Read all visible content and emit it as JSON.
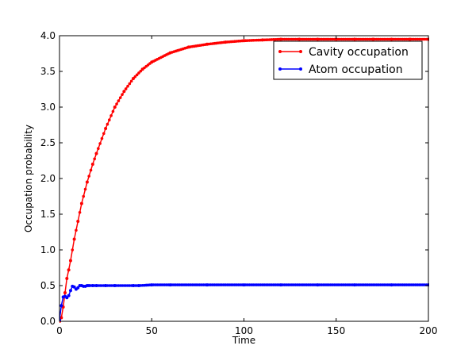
{
  "chart_data": {
    "type": "line",
    "title": "",
    "xlabel": "Time",
    "ylabel": "Occupation probability",
    "xlim": [
      0,
      200
    ],
    "ylim": [
      0.0,
      4.0
    ],
    "xticks": [
      0,
      50,
      100,
      150,
      200
    ],
    "xtick_labels": [
      "0",
      "50",
      "100",
      "150",
      "200"
    ],
    "yticks": [
      0.0,
      0.5,
      1.0,
      1.5,
      2.0,
      2.5,
      3.0,
      3.5,
      4.0
    ],
    "ytick_labels": [
      "0.0",
      "0.5",
      "1.0",
      "1.5",
      "2.0",
      "2.5",
      "3.0",
      "3.5",
      "4.0"
    ],
    "grid": false,
    "legend_position": "top-right",
    "series": [
      {
        "name": "Cavity occupation",
        "color": "#ff0000",
        "marker": "dot",
        "x": [
          0,
          1,
          2,
          3,
          4,
          5,
          6,
          8,
          10,
          12,
          15,
          18,
          20,
          25,
          30,
          35,
          40,
          45,
          50,
          60,
          70,
          80,
          90,
          100,
          110,
          120,
          130,
          140,
          150,
          160,
          170,
          180,
          190,
          200
        ],
        "y": [
          0.0,
          0.05,
          0.2,
          0.4,
          0.6,
          0.72,
          0.85,
          1.15,
          1.4,
          1.65,
          1.95,
          2.2,
          2.35,
          2.7,
          3.0,
          3.22,
          3.4,
          3.53,
          3.63,
          3.76,
          3.84,
          3.88,
          3.91,
          3.93,
          3.94,
          3.95,
          3.95,
          3.95,
          3.95,
          3.95,
          3.95,
          3.95,
          3.95,
          3.95
        ]
      },
      {
        "name": "Atom occupation",
        "color": "#0000ff",
        "marker": "dot",
        "x": [
          0,
          1,
          2,
          3,
          4,
          5,
          6,
          7,
          8,
          9,
          10,
          11,
          12,
          13,
          14,
          15,
          16,
          18,
          20,
          25,
          30,
          40,
          43,
          50,
          60,
          80,
          100,
          120,
          140,
          160,
          180,
          200
        ],
        "y": [
          0.02,
          0.22,
          0.34,
          0.35,
          0.33,
          0.36,
          0.43,
          0.49,
          0.48,
          0.45,
          0.47,
          0.5,
          0.5,
          0.49,
          0.49,
          0.5,
          0.5,
          0.5,
          0.5,
          0.5,
          0.5,
          0.5,
          0.5,
          0.51,
          0.51,
          0.51,
          0.51,
          0.51,
          0.51,
          0.51,
          0.51,
          0.51
        ]
      }
    ]
  }
}
